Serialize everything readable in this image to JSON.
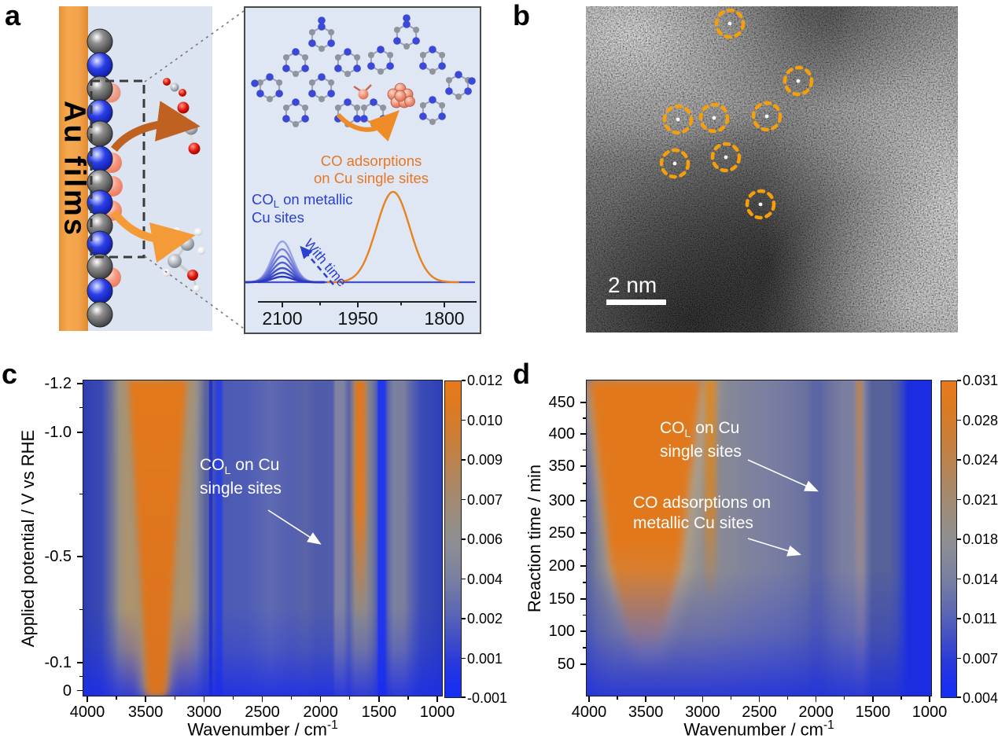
{
  "figure": {
    "panel_labels": {
      "a": "a",
      "b": "b",
      "c": "c",
      "d": "d"
    }
  },
  "panel_a": {
    "au_label": "Au films",
    "inset": {
      "orange_annotation": [
        "CO adsorptions",
        "on Cu single sites"
      ],
      "blue_annotation": {
        "pre": "CO",
        "sub": "L",
        "post": " on metallic",
        "line2": "Cu sites"
      },
      "with_time": "With time"
    }
  },
  "panel_b": {
    "scale_bar": "2 nm",
    "marker_color": "#F59F0B",
    "circle_radius": 17,
    "circles": [
      [
        183,
        22
      ],
      [
        270,
        95
      ],
      [
        117,
        144
      ],
      [
        163,
        142
      ],
      [
        230,
        140
      ],
      [
        113,
        200
      ],
      [
        178,
        192
      ],
      [
        222,
        252
      ]
    ]
  },
  "chart_data": [
    {
      "id": "inset_spectra",
      "type": "line",
      "x_tick_labels": [
        "2100",
        "1950",
        "1800"
      ],
      "x_ticks": [
        2100,
        1950,
        1800
      ],
      "series": [
        {
          "name": "COL on metallic Cu sites",
          "center": 2100,
          "sigma": 20,
          "heights": [
            52,
            42,
            33,
            25,
            18,
            12,
            7
          ],
          "colors": [
            "#9aa2e6",
            "#7b84dc",
            "#6570d6",
            "#5260d0",
            "#4250ca",
            "#3442c6",
            "#2a38c2"
          ]
        },
        {
          "name": "CO adsorptions on Cu single sites",
          "center": 1880,
          "sigma": 33,
          "heights": [
            115
          ],
          "colors": [
            "#e8821e"
          ]
        }
      ],
      "baseline_color": "#4752c8"
    },
    {
      "id": "panel_c",
      "type": "heatmap",
      "xlabel": {
        "pre": "Wavenumber / cm",
        "sup": "-1"
      },
      "ylabel": "Applied potential / V vs RHE",
      "x_ticks": [
        "4000",
        "3500",
        "3000",
        "2500",
        "2000",
        "1500",
        "1000"
      ],
      "y_ticks": [
        {
          "label": "-1.2",
          "pos": 0.012
        },
        {
          "label": "-1.0",
          "pos": 0.166
        },
        {
          "label": "-0.5",
          "pos": 0.558
        },
        {
          "label": "-0.1",
          "pos": 0.893
        },
        {
          "label": "0",
          "pos": 0.982
        }
      ],
      "colorbar": {
        "ticks": [
          "0.012",
          "0.010",
          "0.009",
          "0.007",
          "0.006",
          "0.004",
          "0.002",
          "0.001",
          "-0.001"
        ]
      },
      "annotation": {
        "pre": "CO",
        "sub": "L",
        "post": " on Cu",
        "line2": "single sites"
      }
    },
    {
      "id": "panel_d",
      "type": "heatmap",
      "xlabel": {
        "pre": "Wavenumber / cm",
        "sup": "-1"
      },
      "ylabel": "Reaction time / min",
      "x_ticks": [
        "4000",
        "3500",
        "3000",
        "2500",
        "2000",
        "1500",
        "1000"
      ],
      "y_ticks": [
        {
          "label": "450",
          "pos": 0.072
        },
        {
          "label": "400",
          "pos": 0.171
        },
        {
          "label": "350",
          "pos": 0.273
        },
        {
          "label": "300",
          "pos": 0.382
        },
        {
          "label": "250",
          "pos": 0.484
        },
        {
          "label": "200",
          "pos": 0.588
        },
        {
          "label": "150",
          "pos": 0.692
        },
        {
          "label": "100",
          "pos": 0.794
        },
        {
          "label": "50",
          "pos": 0.898
        }
      ],
      "colorbar": {
        "ticks": [
          "0.031",
          "0.028",
          "0.024",
          "0.021",
          "0.018",
          "0.014",
          "0.011",
          "0.007",
          "0.004"
        ]
      },
      "annotations": [
        {
          "pre": "CO",
          "sub": "L",
          "post": " on Cu",
          "line2": "single sites"
        },
        {
          "line1": "CO adsorptions on",
          "line2": "metallic Cu sites"
        }
      ]
    }
  ],
  "colors": {
    "heat_orange": "#e0761d",
    "heat_bright_blue": "#1b2de0",
    "heat_gray": "#8d8d95",
    "annotation_white": "#ffffff",
    "schematic_orange_arrow": "#f49a36",
    "schematic_brown_arrow": "#bf6120"
  }
}
